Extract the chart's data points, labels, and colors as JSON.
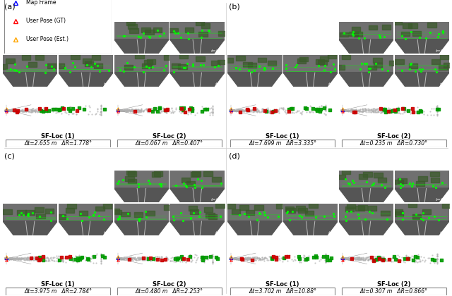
{
  "panels": [
    "(a)",
    "(b)",
    "(c)",
    "(d)"
  ],
  "labels": [
    "SF-Loc (1)",
    "SF-Loc (2)"
  ],
  "metrics": [
    [
      "Δt=2.655 m   ΔR=1.778°",
      "Δt=0.067 m   ΔR=0.407°"
    ],
    [
      "Δt=7.699 m   ΔR=3.335°",
      "Δt=0.235 m   ΔR=0.730°"
    ],
    [
      "Δt=3.975 m   ΔR=2.784°",
      "Δt=0.480 m   ΔR=2.253°"
    ],
    [
      "Δt=3.702 m   ΔR=10.88°",
      "Δt=0.307 m   ΔR=0.866°"
    ]
  ],
  "bg_color": "#ffffff"
}
